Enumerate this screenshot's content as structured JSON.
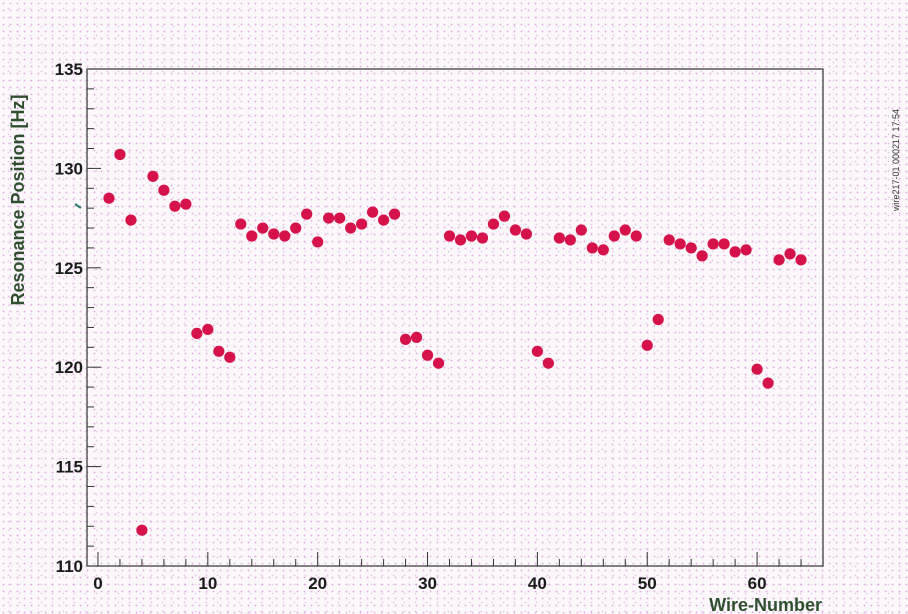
{
  "chart_data": {
    "type": "scatter",
    "title": "",
    "xlabel": "Wire-Number",
    "ylabel": "Resonance Position [Hz]",
    "xlim": [
      -1,
      66
    ],
    "ylim": [
      110,
      135
    ],
    "xticks": [
      0,
      10,
      20,
      30,
      40,
      50,
      60
    ],
    "yticks": [
      110,
      115,
      120,
      125,
      130,
      135
    ],
    "grid": false,
    "legend": "none",
    "marker_color": "#d5124a",
    "frame_color": "#333333",
    "side_label": "wire217-01  000217 17:54",
    "series": [
      {
        "x": [
          1,
          2,
          3,
          4,
          5,
          6,
          7,
          8,
          9,
          10,
          11,
          12,
          13,
          14,
          15,
          16,
          17,
          18,
          19,
          20,
          21,
          22,
          23,
          24,
          25,
          26,
          27,
          28,
          29,
          30,
          31,
          32,
          33,
          34,
          35,
          36,
          37,
          38,
          39,
          40,
          41,
          42,
          43,
          44,
          45,
          46,
          47,
          48,
          49,
          50,
          51,
          52,
          53,
          54,
          55,
          56,
          57,
          58,
          59,
          60,
          61,
          62,
          63,
          64
        ],
        "y": [
          128.5,
          130.7,
          127.4,
          111.8,
          129.6,
          128.9,
          128.1,
          128.2,
          121.7,
          121.9,
          120.8,
          120.5,
          127.2,
          126.6,
          127.0,
          126.7,
          126.6,
          127.0,
          127.7,
          126.3,
          127.5,
          127.5,
          127.0,
          127.2,
          127.8,
          127.4,
          127.7,
          121.4,
          121.5,
          120.6,
          120.2,
          126.6,
          126.4,
          126.6,
          126.5,
          127.2,
          127.6,
          126.9,
          126.7,
          120.8,
          120.2,
          126.5,
          126.4,
          126.9,
          126.0,
          125.9,
          126.6,
          126.9,
          126.6,
          121.1,
          122.4,
          126.4,
          126.2,
          126.0,
          125.6,
          126.2,
          126.2,
          125.8,
          125.9,
          119.9,
          119.2,
          125.4,
          125.7,
          125.4
        ]
      }
    ]
  }
}
